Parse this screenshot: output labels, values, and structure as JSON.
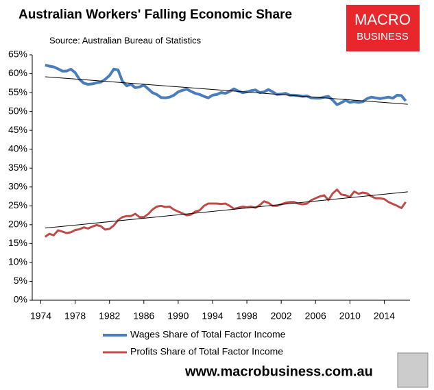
{
  "chart_data": {
    "type": "line",
    "title": "Australian Workers' Falling Economic Share",
    "subtitle": "Source: Australian Bureau of Statistics",
    "x": [
      1974.5,
      1975,
      1975.5,
      1976,
      1976.5,
      1977,
      1977.5,
      1978,
      1978.5,
      1979,
      1979.5,
      1980,
      1980.5,
      1981,
      1981.5,
      1982,
      1982.5,
      1983,
      1983.5,
      1984,
      1984.5,
      1985,
      1985.5,
      1986,
      1986.5,
      1987,
      1987.5,
      1988,
      1988.5,
      1989,
      1989.5,
      1990,
      1990.5,
      1991,
      1991.5,
      1992,
      1992.5,
      1993,
      1993.5,
      1994,
      1994.5,
      1995,
      1995.5,
      1996,
      1996.5,
      1997,
      1997.5,
      1998,
      1998.5,
      1999,
      1999.5,
      2000,
      2000.5,
      2001,
      2001.5,
      2002,
      2002.5,
      2003,
      2003.5,
      2004,
      2004.5,
      2005,
      2005.5,
      2006,
      2006.5,
      2007,
      2007.5,
      2008,
      2008.5,
      2009,
      2009.5,
      2010,
      2010.5,
      2011,
      2011.5,
      2012,
      2012.5,
      2013,
      2013.5,
      2014,
      2014.5,
      2015,
      2015.5,
      2016,
      2016.5
    ],
    "series": [
      {
        "name": "Wages Share of Total Factor Income",
        "color": "#4a7ebb",
        "width": 4,
        "values": [
          62.3,
          62.0,
          61.8,
          61.3,
          60.7,
          60.7,
          61.2,
          60.3,
          58.5,
          57.5,
          57.2,
          57.3,
          57.6,
          57.8,
          58.5,
          59.5,
          61.2,
          61.0,
          58.0,
          56.8,
          57.2,
          56.3,
          56.5,
          57.0,
          56.0,
          55.0,
          54.5,
          53.7,
          53.6,
          53.8,
          54.3,
          55.2,
          55.6,
          55.9,
          55.3,
          54.8,
          54.5,
          54.0,
          53.6,
          54.3,
          54.5,
          55.0,
          54.8,
          55.3,
          56.0,
          55.4,
          55.0,
          55.2,
          55.5,
          55.7,
          55.0,
          55.2,
          55.8,
          55.2,
          54.5,
          54.6,
          54.8,
          54.3,
          54.3,
          54.2,
          54.0,
          54.1,
          53.6,
          53.5,
          53.5,
          53.8,
          54.0,
          53.0,
          51.8,
          52.3,
          53.0,
          52.4,
          52.6,
          52.4,
          52.6,
          53.4,
          53.8,
          53.6,
          53.4,
          53.6,
          53.8,
          53.5,
          54.3,
          54.2,
          52.8
        ],
        "trend": [
          59.2,
          51.9
        ]
      },
      {
        "name": "Profits Share of Total Factor Income",
        "color": "#be4b48",
        "width": 3,
        "values": [
          16.8,
          17.6,
          17.2,
          18.5,
          18.2,
          17.8,
          18.0,
          18.6,
          18.8,
          19.3,
          19.0,
          19.5,
          19.9,
          19.6,
          18.7,
          18.9,
          19.8,
          21.2,
          22.0,
          22.3,
          22.3,
          22.9,
          22.0,
          22.0,
          22.8,
          24.0,
          24.8,
          25.0,
          24.7,
          24.8,
          24.0,
          23.5,
          23.0,
          22.5,
          22.7,
          23.5,
          23.8,
          25.0,
          25.6,
          25.6,
          25.6,
          25.5,
          25.6,
          25.0,
          24.2,
          24.5,
          24.8,
          24.6,
          24.8,
          24.5,
          25.2,
          26.2,
          25.8,
          25.0,
          25.0,
          25.4,
          25.8,
          26.0,
          26.0,
          25.6,
          25.4,
          25.6,
          26.5,
          27.0,
          27.5,
          27.8,
          26.5,
          28.3,
          29.3,
          28.0,
          27.8,
          27.3,
          28.8,
          28.2,
          28.5,
          28.3,
          27.5,
          27.0,
          27.0,
          26.8,
          26.0,
          25.5,
          25.0,
          24.4,
          26.0
        ],
        "trend": [
          19.1,
          28.7
        ]
      }
    ],
    "trend_x": [
      1974.5,
      2016.75
    ],
    "trend_color": "#000000",
    "xlim": [
      1973,
      2017
    ],
    "xticks": [
      1974,
      1978,
      1982,
      1986,
      1990,
      1994,
      1998,
      2002,
      2006,
      2010,
      2014
    ],
    "ylim": [
      0,
      65
    ],
    "yticks": [
      {
        "value": 0,
        "label": "0%"
      },
      {
        "value": 5,
        "label": "5%"
      },
      {
        "value": 10,
        "label": "10%"
      },
      {
        "value": 15,
        "label": "15%"
      },
      {
        "value": 20,
        "label": "20%"
      },
      {
        "value": 25,
        "label": "25%"
      },
      {
        "value": 30,
        "label": "30%"
      },
      {
        "value": 35,
        "label": "35%"
      },
      {
        "value": 40,
        "label": "40%"
      },
      {
        "value": 45,
        "label": "45%"
      },
      {
        "value": 50,
        "label": "50%"
      },
      {
        "value": 55,
        "label": "55%"
      },
      {
        "value": 60,
        "label": "60%"
      },
      {
        "value": 65,
        "label": "65%"
      }
    ],
    "grid": false,
    "legend": "bottom"
  },
  "logo": {
    "line1": "MACRO",
    "line2": "BUSINESS"
  },
  "footer": "www.macrobusiness.com.au"
}
